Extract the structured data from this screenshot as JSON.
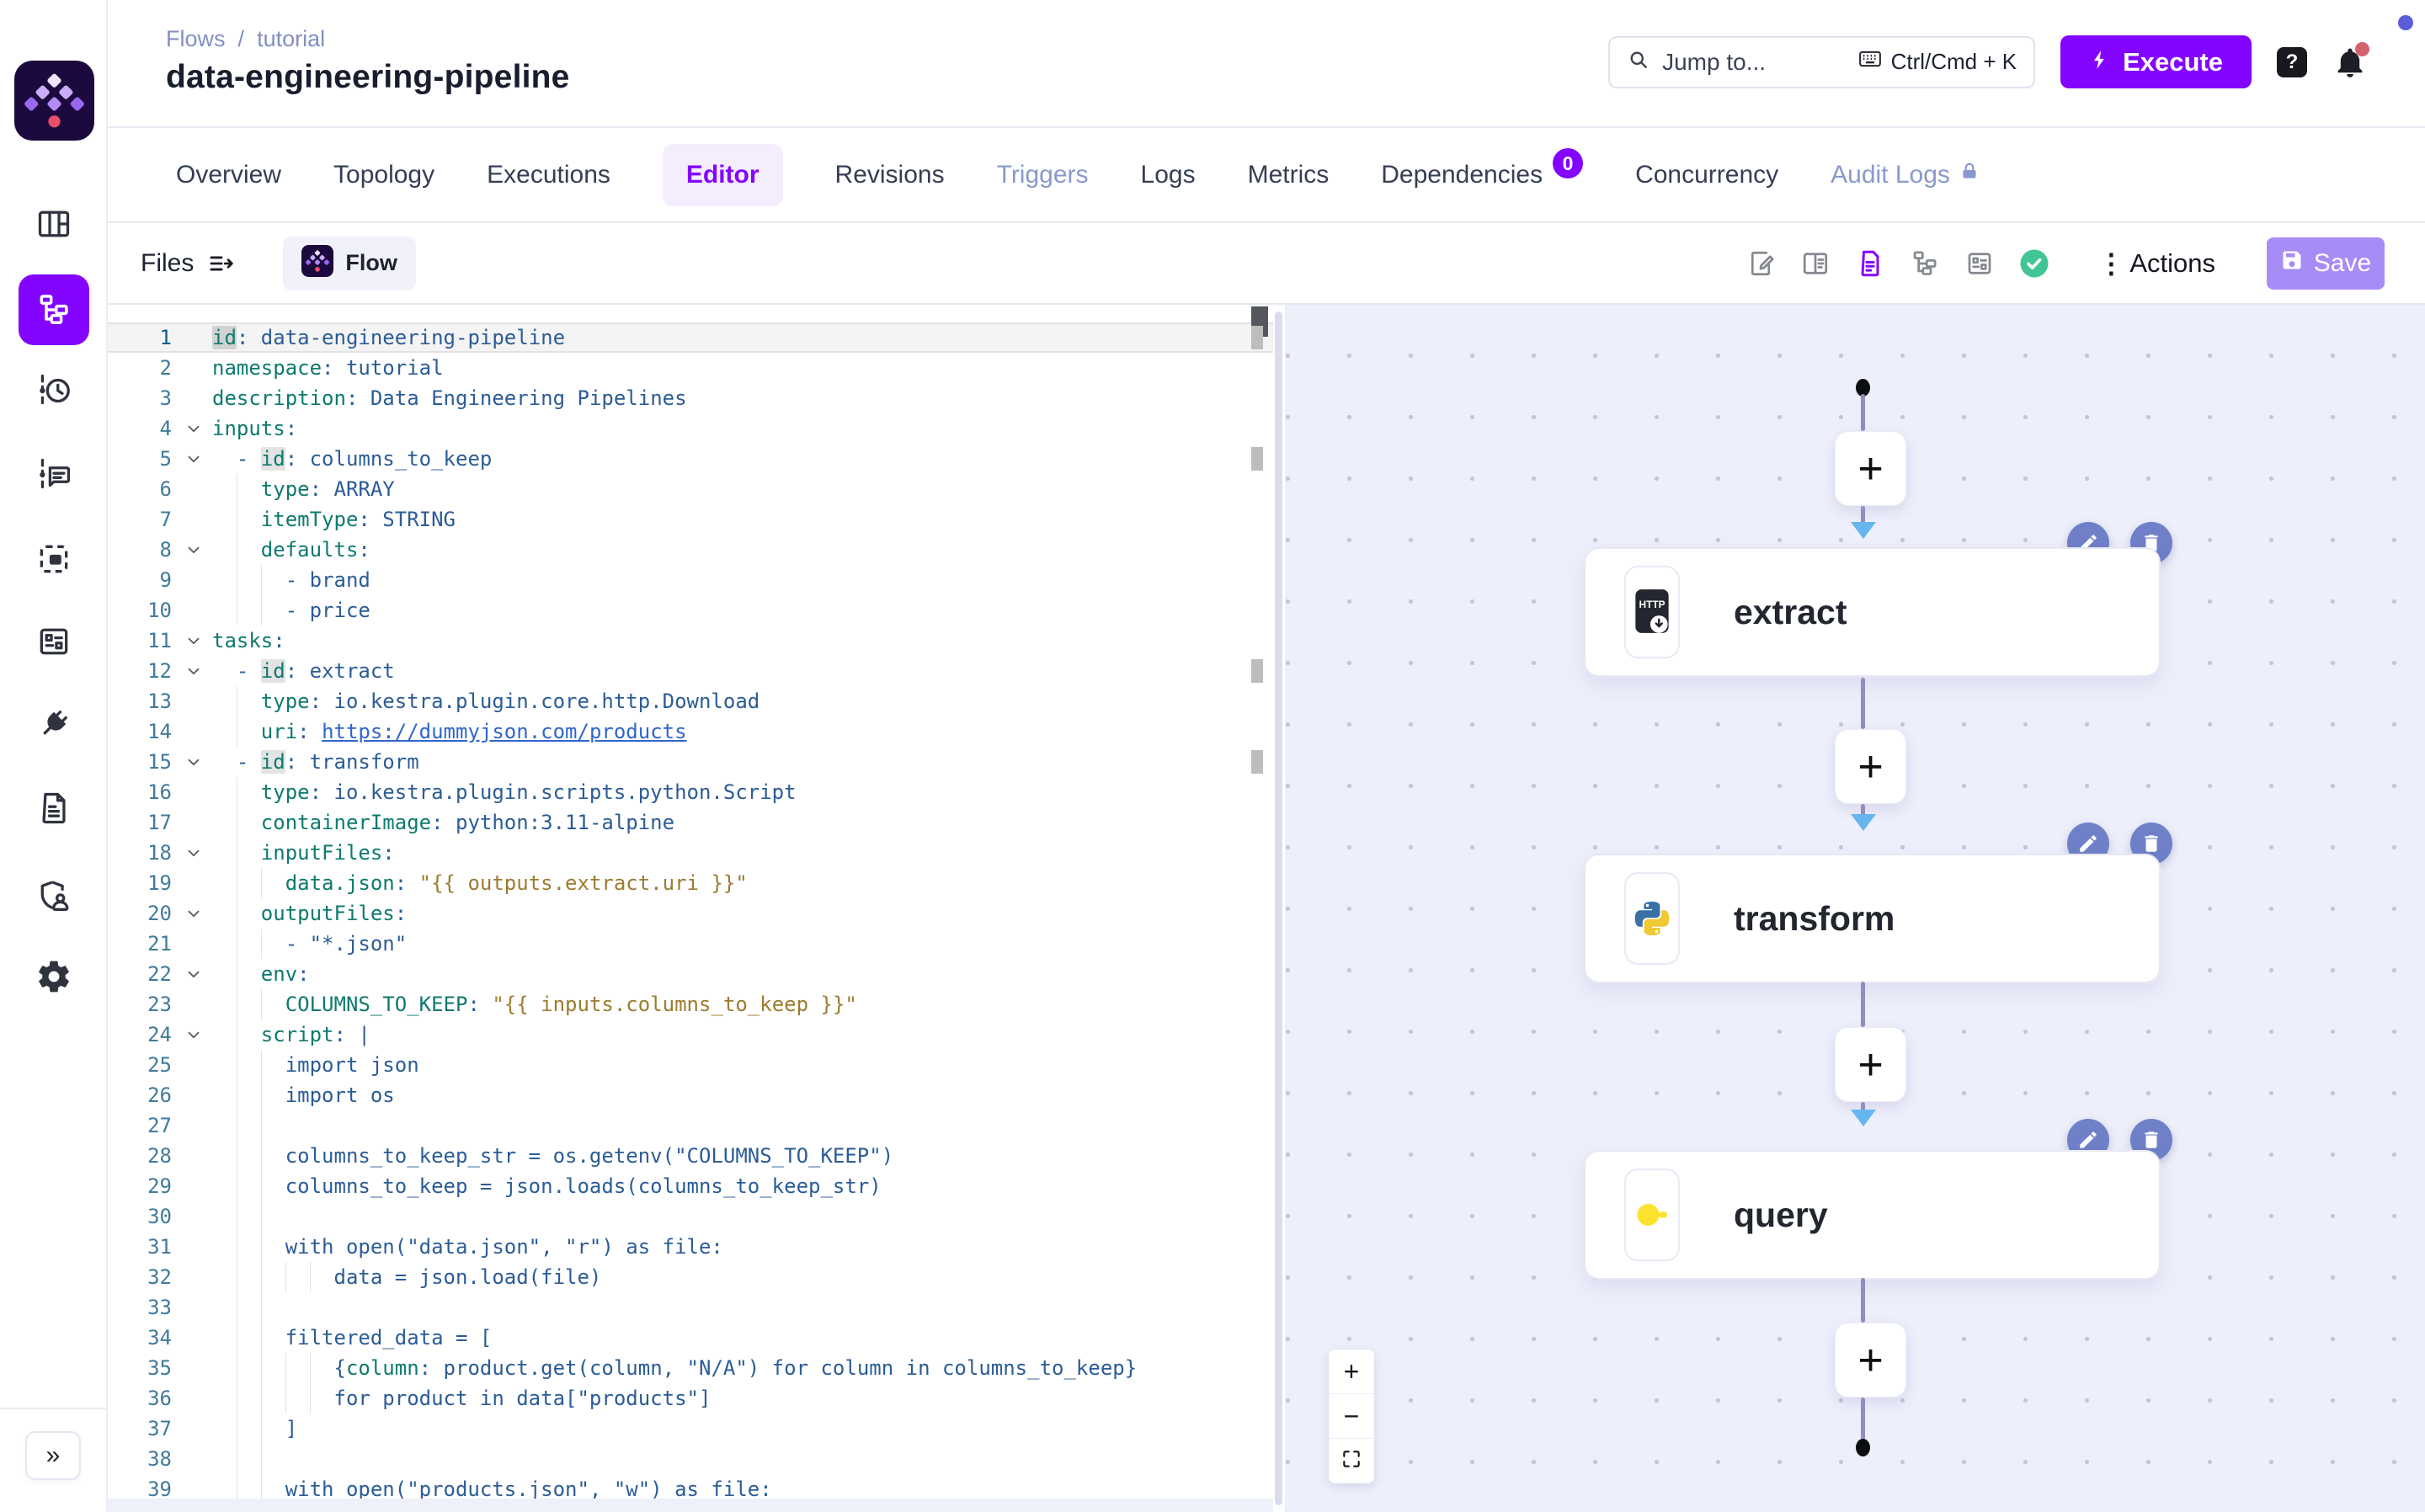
{
  "colors": {
    "accent": "#8405ff",
    "save_button": "#a78bf6",
    "validation_ok": "#41c693",
    "node_action": "#7080c8",
    "arrow_blue": "#66b5ee",
    "connector": "#968cbd",
    "key_token": "#0e7a6e",
    "value_token": "#2b5c97",
    "template_token": "#9c7c2e",
    "url_token": "#2f66cc",
    "topology_bg": "#edeffb",
    "notification_dot": "#d4626f"
  },
  "sidebar": {
    "icons": [
      "dashboard-icon",
      "flows-icon",
      "executions-icon",
      "logs-icon",
      "namespaces-icon",
      "blueprints-icon",
      "plugins-icon",
      "docs-icon",
      "iam-icon",
      "settings-icon"
    ],
    "active_icon": "flows-icon",
    "collapse_label": "»"
  },
  "header": {
    "breadcrumb": {
      "items": [
        "Flows",
        "tutorial"
      ],
      "separator": "/"
    },
    "title": "data-engineering-pipeline",
    "search": {
      "placeholder": "Jump to...",
      "shortcut": "Ctrl/Cmd + K"
    },
    "execute_label": "Execute",
    "help_label": "?"
  },
  "tabs": [
    {
      "label": "Overview"
    },
    {
      "label": "Topology"
    },
    {
      "label": "Executions"
    },
    {
      "label": "Editor",
      "active": true
    },
    {
      "label": "Revisions"
    },
    {
      "label": "Triggers",
      "muted": true
    },
    {
      "label": "Logs"
    },
    {
      "label": "Metrics"
    },
    {
      "label": "Dependencies",
      "badge": "0"
    },
    {
      "label": "Concurrency"
    },
    {
      "label": "Audit Logs",
      "muted": true,
      "lock": true
    }
  ],
  "toolbar": {
    "files_label": "Files",
    "flow_tab_label": "Flow",
    "icons": [
      "doc-edit-icon",
      "split-view-icon",
      "code-file-icon",
      "tree-view-icon",
      "form-view-icon",
      "validation-check-icon"
    ],
    "active_icon": "code-file-icon",
    "actions_label": "Actions",
    "save_label": "Save"
  },
  "editor": {
    "language": "yaml",
    "match_highlight_word": "id",
    "lines": [
      {
        "n": 1,
        "cur": true,
        "fold": false,
        "ind": 0,
        "tok": [
          [
            "k b1",
            "id"
          ],
          [
            "p",
            ":"
          ],
          [
            "v",
            " data-engineering-pipeline"
          ]
        ]
      },
      {
        "n": 2,
        "fold": false,
        "ind": 0,
        "tok": [
          [
            "k",
            "namespace"
          ],
          [
            "p",
            ":"
          ],
          [
            "v",
            " tutorial"
          ]
        ]
      },
      {
        "n": 3,
        "fold": false,
        "ind": 0,
        "tok": [
          [
            "k",
            "description"
          ],
          [
            "p",
            ":"
          ],
          [
            "v",
            " Data Engineering Pipelines"
          ]
        ]
      },
      {
        "n": 4,
        "fold": true,
        "ind": 0,
        "tok": [
          [
            "k",
            "inputs"
          ],
          [
            "p",
            ":"
          ]
        ]
      },
      {
        "n": 5,
        "fold": true,
        "ind": 2,
        "tok": [
          [
            "p",
            "  - "
          ],
          [
            "k b",
            "id"
          ],
          [
            "p",
            ":"
          ],
          [
            "v",
            " columns_to_keep"
          ]
        ]
      },
      {
        "n": 6,
        "fold": false,
        "ind": 4,
        "tok": [
          [
            "p",
            "    "
          ],
          [
            "k",
            "type"
          ],
          [
            "p",
            ":"
          ],
          [
            "v",
            " ARRAY"
          ]
        ]
      },
      {
        "n": 7,
        "fold": false,
        "ind": 4,
        "tok": [
          [
            "p",
            "    "
          ],
          [
            "k",
            "itemType"
          ],
          [
            "p",
            ":"
          ],
          [
            "v",
            " STRING"
          ]
        ]
      },
      {
        "n": 8,
        "fold": true,
        "ind": 4,
        "tok": [
          [
            "p",
            "    "
          ],
          [
            "k",
            "defaults"
          ],
          [
            "p",
            ":"
          ]
        ]
      },
      {
        "n": 9,
        "fold": false,
        "ind": 6,
        "tok": [
          [
            "p",
            "      - "
          ],
          [
            "v",
            "brand"
          ]
        ]
      },
      {
        "n": 10,
        "fold": false,
        "ind": 6,
        "tok": [
          [
            "p",
            "      - "
          ],
          [
            "v",
            "price"
          ]
        ]
      },
      {
        "n": 11,
        "fold": true,
        "ind": 0,
        "tok": [
          [
            "k",
            "tasks"
          ],
          [
            "p",
            ":"
          ]
        ]
      },
      {
        "n": 12,
        "fold": true,
        "ind": 2,
        "tok": [
          [
            "p",
            "  - "
          ],
          [
            "k b",
            "id"
          ],
          [
            "p",
            ":"
          ],
          [
            "v",
            " extract"
          ]
        ]
      },
      {
        "n": 13,
        "fold": false,
        "ind": 4,
        "tok": [
          [
            "p",
            "    "
          ],
          [
            "k",
            "type"
          ],
          [
            "p",
            ":"
          ],
          [
            "v",
            " io.kestra.plugin.core.http.Download"
          ]
        ]
      },
      {
        "n": 14,
        "fold": false,
        "ind": 4,
        "tok": [
          [
            "p",
            "    "
          ],
          [
            "k",
            "uri"
          ],
          [
            "p",
            ":"
          ],
          [
            "v",
            " "
          ],
          [
            "u",
            "https://dummyjson.com/products"
          ]
        ]
      },
      {
        "n": 15,
        "fold": true,
        "ind": 2,
        "tok": [
          [
            "p",
            "  - "
          ],
          [
            "k b",
            "id"
          ],
          [
            "p",
            ":"
          ],
          [
            "v",
            " transform"
          ]
        ]
      },
      {
        "n": 16,
        "fold": false,
        "ind": 4,
        "tok": [
          [
            "p",
            "    "
          ],
          [
            "k",
            "type"
          ],
          [
            "p",
            ":"
          ],
          [
            "v",
            " io.kestra.plugin.scripts.python.Script"
          ]
        ]
      },
      {
        "n": 17,
        "fold": false,
        "ind": 4,
        "tok": [
          [
            "p",
            "    "
          ],
          [
            "k",
            "containerImage"
          ],
          [
            "p",
            ":"
          ],
          [
            "v",
            " python:3.11-alpine"
          ]
        ]
      },
      {
        "n": 18,
        "fold": true,
        "ind": 4,
        "tok": [
          [
            "p",
            "    "
          ],
          [
            "k",
            "inputFiles"
          ],
          [
            "p",
            ":"
          ]
        ]
      },
      {
        "n": 19,
        "fold": false,
        "ind": 6,
        "tok": [
          [
            "p",
            "      "
          ],
          [
            "k",
            "data.json"
          ],
          [
            "p",
            ":"
          ],
          [
            "v",
            " "
          ],
          [
            "t",
            "\"{{ outputs.extract.uri }}\""
          ]
        ]
      },
      {
        "n": 20,
        "fold": true,
        "ind": 4,
        "tok": [
          [
            "p",
            "    "
          ],
          [
            "k",
            "outputFiles"
          ],
          [
            "p",
            ":"
          ]
        ]
      },
      {
        "n": 21,
        "fold": false,
        "ind": 6,
        "tok": [
          [
            "p",
            "      - "
          ],
          [
            "v",
            "\"*.json\""
          ]
        ]
      },
      {
        "n": 22,
        "fold": true,
        "ind": 4,
        "tok": [
          [
            "p",
            "    "
          ],
          [
            "k",
            "env"
          ],
          [
            "p",
            ":"
          ]
        ]
      },
      {
        "n": 23,
        "fold": false,
        "ind": 6,
        "tok": [
          [
            "p",
            "      "
          ],
          [
            "k",
            "COLUMNS_TO_KEEP"
          ],
          [
            "p",
            ":"
          ],
          [
            "v",
            " "
          ],
          [
            "t",
            "\"{{ inputs.columns_to_keep }}\""
          ]
        ]
      },
      {
        "n": 24,
        "fold": true,
        "ind": 4,
        "tok": [
          [
            "p",
            "    "
          ],
          [
            "k",
            "script"
          ],
          [
            "p",
            ":"
          ],
          [
            "v",
            " |"
          ]
        ]
      },
      {
        "n": 25,
        "fold": false,
        "ind": 6,
        "tok": [
          [
            "v",
            "      import json"
          ]
        ]
      },
      {
        "n": 26,
        "fold": false,
        "ind": 6,
        "tok": [
          [
            "v",
            "      import os"
          ]
        ]
      },
      {
        "n": 27,
        "fold": false,
        "ind": 6,
        "tok": []
      },
      {
        "n": 28,
        "fold": false,
        "ind": 6,
        "tok": [
          [
            "v",
            "      columns_to_keep_str = os.getenv(\"COLUMNS_TO_KEEP\")"
          ]
        ]
      },
      {
        "n": 29,
        "fold": false,
        "ind": 6,
        "tok": [
          [
            "v",
            "      columns_to_keep = json.loads(columns_to_keep_str)"
          ]
        ]
      },
      {
        "n": 30,
        "fold": false,
        "ind": 6,
        "tok": []
      },
      {
        "n": 31,
        "fold": false,
        "ind": 6,
        "tok": [
          [
            "v",
            "      with open(\"data.json\", \"r\") as file:"
          ]
        ]
      },
      {
        "n": 32,
        "fold": false,
        "ind": 10,
        "tok": [
          [
            "v",
            "          data = json.load(file)"
          ]
        ]
      },
      {
        "n": 33,
        "fold": false,
        "ind": 6,
        "tok": []
      },
      {
        "n": 34,
        "fold": false,
        "ind": 6,
        "tok": [
          [
            "v",
            "      filtered_data = ["
          ]
        ]
      },
      {
        "n": 35,
        "fold": false,
        "ind": 10,
        "tok": [
          [
            "v",
            "          {"
          ],
          [
            "k",
            "column"
          ],
          [
            "v",
            ": product.get(column, \"N/A\") for column in columns_to_keep}"
          ]
        ]
      },
      {
        "n": 36,
        "fold": false,
        "ind": 10,
        "tok": [
          [
            "v",
            "          for product in data[\"products\"]"
          ]
        ]
      },
      {
        "n": 37,
        "fold": false,
        "ind": 6,
        "tok": [
          [
            "v",
            "      ]"
          ]
        ]
      },
      {
        "n": 38,
        "fold": false,
        "ind": 6,
        "tok": []
      },
      {
        "n": 39,
        "fold": false,
        "ind": 6,
        "tok": [
          [
            "v",
            "      with open(\"products.json\", \"w\") as file:"
          ]
        ]
      }
    ],
    "ruler_marked_lines": [
      1,
      5,
      12,
      15
    ]
  },
  "topology": {
    "plus_label": "+",
    "nodes": [
      {
        "label": "extract",
        "icon": "http-download-icon",
        "icon_text": "HTTP"
      },
      {
        "label": "transform",
        "icon": "python-icon"
      },
      {
        "label": "query",
        "icon": "duckdb-icon"
      }
    ],
    "zoom_controls": {
      "zoom_in": "+",
      "zoom_out": "−",
      "fullscreen": "fullscreen-icon"
    }
  }
}
